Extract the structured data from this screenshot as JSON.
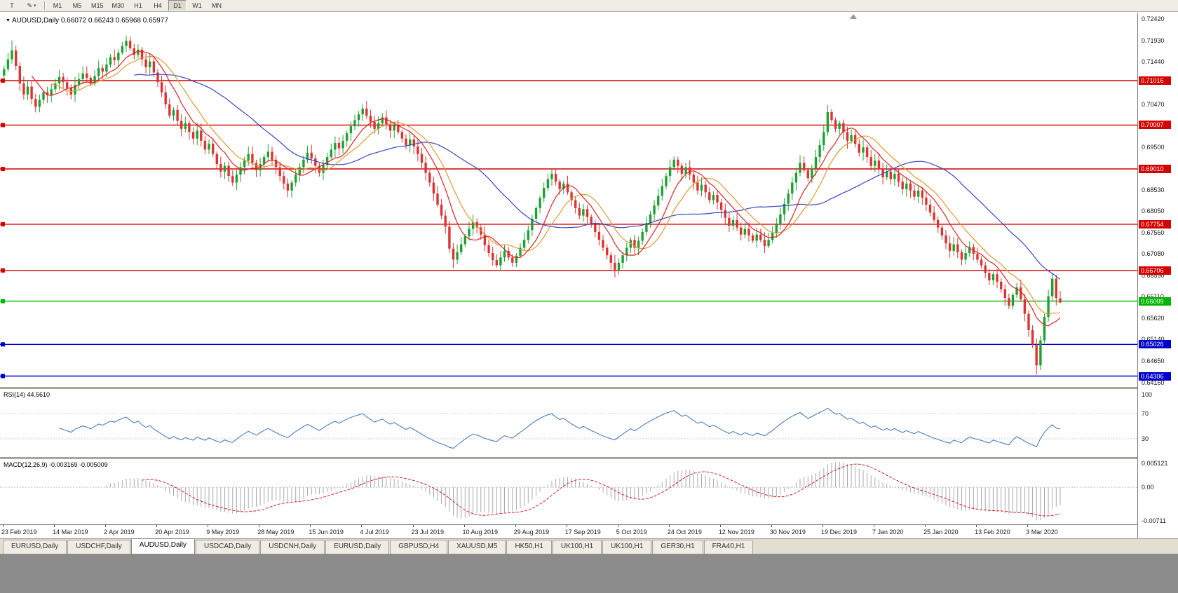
{
  "toolbar": {
    "text_tool_label": "T",
    "draw_icon": "✎",
    "dropdown_icon": "▾",
    "timeframes": [
      "M1",
      "M5",
      "M15",
      "M30",
      "H1",
      "H4",
      "D1",
      "W1",
      "MN"
    ],
    "active_timeframe": "D1"
  },
  "chart": {
    "marker": "▼",
    "symbol_title": "AUDUSD,Daily",
    "ohlc": "0.66072 0.66243 0.65968 0.65977"
  },
  "chart_data": {
    "type": "candlestick",
    "symbol": "AUDUSD",
    "timeframe": "Daily",
    "price_min": 0.6406,
    "price_max": 0.7256,
    "closes": [
      0.7128,
      0.715,
      0.717,
      0.7135,
      0.7095,
      0.707,
      0.7088,
      0.706,
      0.7042,
      0.7058,
      0.7075,
      0.7068,
      0.7082,
      0.7095,
      0.711,
      0.7098,
      0.7085,
      0.707,
      0.7092,
      0.7105,
      0.7118,
      0.7108,
      0.7095,
      0.7112,
      0.713,
      0.7122,
      0.7138,
      0.7155,
      0.7148,
      0.7165,
      0.718,
      0.7192,
      0.7175,
      0.716,
      0.7172,
      0.715,
      0.7132,
      0.7145,
      0.712,
      0.7098,
      0.7075,
      0.7048,
      0.7022,
      0.7035,
      0.701,
      0.6992,
      0.7005,
      0.6985,
      0.697,
      0.6988,
      0.6965,
      0.6945,
      0.6958,
      0.6935,
      0.6912,
      0.6895,
      0.6908,
      0.6885,
      0.687,
      0.6888,
      0.6905,
      0.692,
      0.6935,
      0.6915,
      0.6898,
      0.6912,
      0.6928,
      0.694,
      0.6922,
      0.6905,
      0.6885,
      0.6868,
      0.6852,
      0.687,
      0.6888,
      0.6905,
      0.6922,
      0.6938,
      0.6925,
      0.6908,
      0.6892,
      0.691,
      0.6928,
      0.6945,
      0.696,
      0.6948,
      0.6965,
      0.6982,
      0.6998,
      0.7012,
      0.7025,
      0.7038,
      0.7022,
      0.7008,
      0.6992,
      0.7005,
      0.7018,
      0.7002,
      0.6988,
      0.7,
      0.6985,
      0.697,
      0.6955,
      0.6968,
      0.6952,
      0.6935,
      0.6915,
      0.6892,
      0.687,
      0.6845,
      0.682,
      0.6795,
      0.677,
      0.672,
      0.6695,
      0.6712,
      0.673,
      0.6748,
      0.6765,
      0.678,
      0.6768,
      0.6752,
      0.6728,
      0.671,
      0.6694,
      0.6682,
      0.67,
      0.6715,
      0.67,
      0.6688,
      0.6704,
      0.6722,
      0.674,
      0.6762,
      0.6788,
      0.6812,
      0.6835,
      0.6858,
      0.6878,
      0.689,
      0.6872,
      0.6855,
      0.6868,
      0.6848,
      0.683,
      0.6812,
      0.6795,
      0.681,
      0.6792,
      0.6775,
      0.6758,
      0.674,
      0.6722,
      0.6705,
      0.6688,
      0.6672,
      0.6688,
      0.6705,
      0.6722,
      0.674,
      0.6722,
      0.6738,
      0.6758,
      0.6778,
      0.6798,
      0.6818,
      0.684,
      0.6862,
      0.6885,
      0.6905,
      0.6922,
      0.6908,
      0.689,
      0.6905,
      0.6888,
      0.687,
      0.6852,
      0.6865,
      0.6848,
      0.683,
      0.6842,
      0.6825,
      0.6808,
      0.679,
      0.6772,
      0.6785,
      0.6768,
      0.6752,
      0.6765,
      0.675,
      0.6738,
      0.6752,
      0.674,
      0.6726,
      0.674,
      0.6756,
      0.6775,
      0.6798,
      0.6822,
      0.6845,
      0.687,
      0.6892,
      0.6915,
      0.6898,
      0.688,
      0.6902,
      0.6928,
      0.6955,
      0.6985,
      0.703,
      0.7012,
      0.6992,
      0.7005,
      0.6985,
      0.6965,
      0.6978,
      0.6958,
      0.6938,
      0.695,
      0.6928,
      0.6908,
      0.692,
      0.69,
      0.6882,
      0.6895,
      0.6878,
      0.689,
      0.6872,
      0.6855,
      0.6868,
      0.6852,
      0.6838,
      0.6852,
      0.6836,
      0.682,
      0.6802,
      0.6785,
      0.6768,
      0.675,
      0.6732,
      0.6715,
      0.673,
      0.6712,
      0.6695,
      0.671,
      0.6724,
      0.6708,
      0.6695,
      0.6682,
      0.6665,
      0.6648,
      0.6662,
      0.6645,
      0.6628,
      0.6608,
      0.659,
      0.6615,
      0.6632,
      0.6605,
      0.6572,
      0.6535,
      0.6502,
      0.6455,
      0.6512,
      0.6565,
      0.6612,
      0.6652,
      0.6608,
      0.65977
    ],
    "high_overrides": {
      "2": 0.7193,
      "31": 0.7203,
      "91": 0.7048,
      "170": 0.693,
      "209": 0.7046
    },
    "low_overrides": {
      "114": 0.6676,
      "125": 0.6677,
      "262": 0.6434
    },
    "last_candle": {
      "open": 0.66072,
      "high": 0.66243,
      "low": 0.65968,
      "close": 0.65977
    },
    "candle_colors": {
      "up": "#1ea133",
      "down": "#dd3333"
    },
    "moving_averages": [
      {
        "period": 34,
        "color": "#3747c0"
      },
      {
        "period": 13,
        "color": "#e09a2e"
      },
      {
        "period": 8,
        "color": "#e02222"
      }
    ],
    "levels": [
      {
        "price": 0.71016,
        "label": "0.71016",
        "color": "#d40000",
        "marker": true
      },
      {
        "price": 0.70007,
        "label": "0.70007",
        "color": "#d40000",
        "marker": true
      },
      {
        "price": 0.6901,
        "label": "0.69010",
        "color": "#d40000",
        "marker": true
      },
      {
        "price": 0.67754,
        "label": "0.67754",
        "color": "#d40000",
        "marker": true
      },
      {
        "price": 0.66706,
        "label": "0.66706",
        "color": "#d40000",
        "marker": true
      },
      {
        "price": 0.66009,
        "label": "0.66009",
        "color": "#00b400",
        "marker": true
      },
      {
        "price": 0.65026,
        "label": "0.65026",
        "color": "#0000cc",
        "marker": true
      },
      {
        "price": 0.64306,
        "label": "0.64306",
        "color": "#0000cc",
        "marker": true
      }
    ],
    "y_axis_labels": [
      "0.72420",
      "0.71930",
      "0.71440",
      "0.70470",
      "0.69500",
      "0.68530",
      "0.68050",
      "0.67560",
      "0.67080",
      "0.66590",
      "0.66110",
      "0.65620",
      "0.65140",
      "0.64650",
      "0.64160"
    ],
    "x_labels": [
      {
        "text": "23 Feb 2019",
        "index": 0
      },
      {
        "text": "14 Mar 2019",
        "index": 13
      },
      {
        "text": "2 Apr 2019",
        "index": 26
      },
      {
        "text": "20 Apr 2019",
        "index": 39
      },
      {
        "text": "9 May 2019",
        "index": 52
      },
      {
        "text": "28 May 2019",
        "index": 65
      },
      {
        "text": "15 Jun 2019",
        "index": 78
      },
      {
        "text": "4 Jul 2019",
        "index": 91
      },
      {
        "text": "23 Jul 2019",
        "index": 104
      },
      {
        "text": "10 Aug 2019",
        "index": 117
      },
      {
        "text": "29 Aug 2019",
        "index": 130
      },
      {
        "text": "17 Sep 2019",
        "index": 143
      },
      {
        "text": "5 Oct 2019",
        "index": 156
      },
      {
        "text": "24 Oct 2019",
        "index": 169
      },
      {
        "text": "12 Nov 2019",
        "index": 182
      },
      {
        "text": "30 Nov 2019",
        "index": 195
      },
      {
        "text": "19 Dec 2019",
        "index": 208
      },
      {
        "text": "7 Jan 2020",
        "index": 221
      },
      {
        "text": "25 Jan 2020",
        "index": 234
      },
      {
        "text": "13 Feb 2020",
        "index": 247
      },
      {
        "text": "3 Mar 2020",
        "index": 260
      }
    ],
    "rsi": {
      "label": "RSI(14) 44.5610",
      "period": 14,
      "color": "#4a7ebb",
      "levels": [
        70,
        30
      ],
      "axis": [
        {
          "text": "100",
          "value": 100
        },
        {
          "text": "70",
          "value": 70
        },
        {
          "text": "30",
          "value": 30
        }
      ]
    },
    "macd": {
      "label": "MACD(12,26,9) -0.003169 -0.005009",
      "fast": 12,
      "slow": 26,
      "signal": 9,
      "histogram_color": "#a9a9a9",
      "signal_color": "#d02020",
      "range_max": 0.005121,
      "range_min": -0.00711,
      "axis": [
        {
          "text": "0.005121",
          "value": 0.005121
        },
        {
          "text": "0.00",
          "value": 0
        },
        {
          "text": "-0.00711",
          "value": -0.00711
        }
      ]
    }
  },
  "tabs": {
    "active_index": 2,
    "items": [
      "EURUSD,Daily",
      "USDCHF,Daily",
      "AUDUSD,Daily",
      "USDCAD,Daily",
      "USDCNH,Daily",
      "EURUSD,Daily",
      "GBPUSD,H4",
      "XAUUSD,M5",
      "HK50,H1",
      "UK100,H1",
      "UK100,H1",
      "GER30,H1",
      "FRA40,H1"
    ]
  }
}
